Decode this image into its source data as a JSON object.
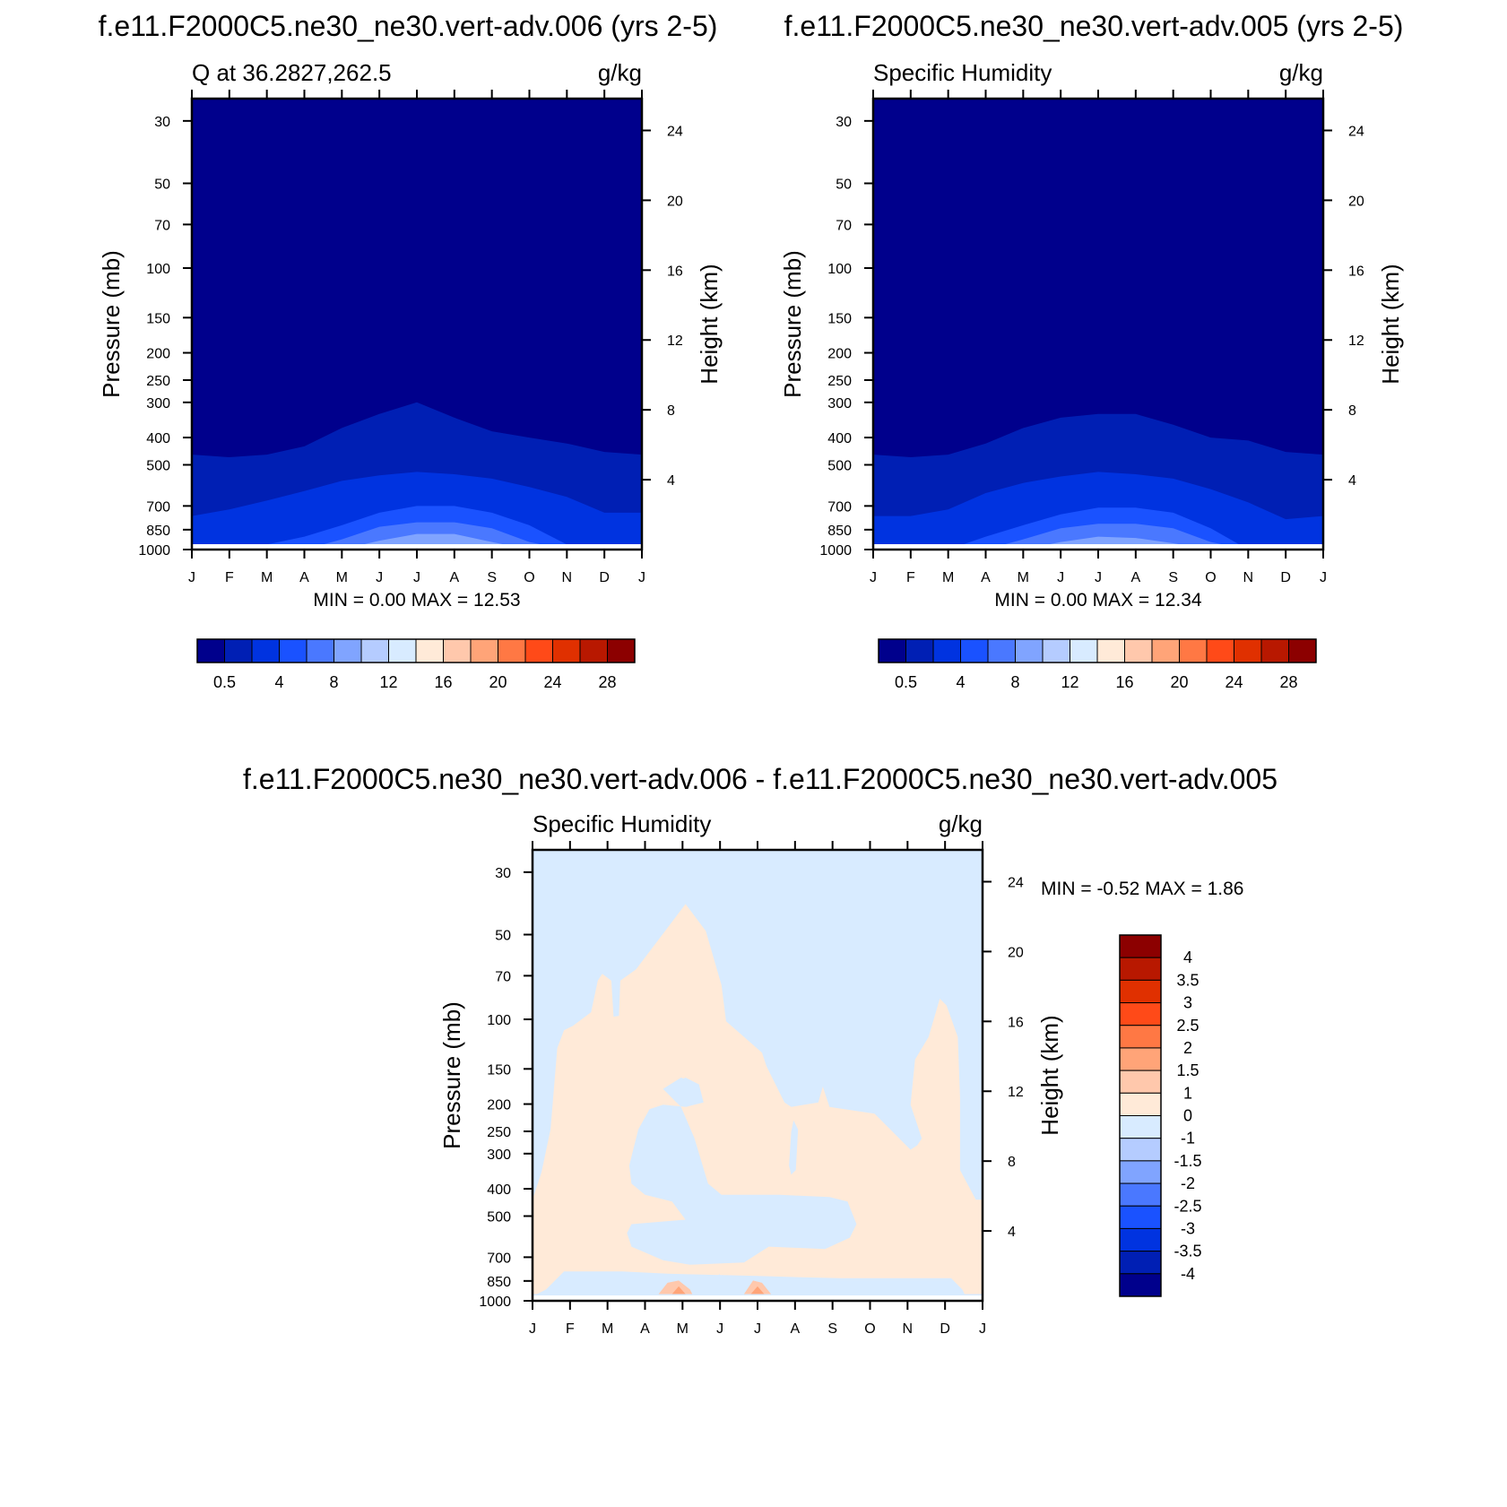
{
  "figure": {
    "left_panel_title": "f.e11.F2000C5.ne30_ne30.vert-adv.006 (yrs 2-5)",
    "right_panel_title": "f.e11.F2000C5.ne30_ne30.vert-adv.005 (yrs 2-5)",
    "diff_title": "f.e11.F2000C5.ne30_ne30.vert-adv.006 - f.e11.F2000C5.ne30_ne30.vert-adv.005"
  },
  "chart_data": [
    {
      "type": "heatmap",
      "id": "left",
      "subtitle_left": "Q at 36.2827,262.5",
      "subtitle_right": "g/kg",
      "ylabel": "Pressure (mb)",
      "ylabel_right": "Height (km)",
      "months": [
        "J",
        "F",
        "M",
        "A",
        "M",
        "J",
        "J",
        "A",
        "S",
        "O",
        "N",
        "D",
        "J"
      ],
      "pressure_ticks": [
        30,
        50,
        70,
        100,
        150,
        200,
        250,
        300,
        400,
        500,
        700,
        850,
        1000
      ],
      "height_ticks": [
        4,
        8,
        12,
        16,
        20,
        24
      ],
      "ylim": [
        1000,
        25
      ],
      "min_label": "MIN =",
      "min_value": "0.00",
      "max_label": "MAX =",
      "max_value": "12.53",
      "contour_top_pressure": {
        "level_0_5": [
          460,
          470,
          460,
          430,
          370,
          330,
          300,
          340,
          380,
          400,
          420,
          450,
          460
        ],
        "level_2": [
          760,
          720,
          670,
          620,
          570,
          545,
          530,
          540,
          560,
          600,
          650,
          740,
          740
        ],
        "level_4": [
          1000,
          1000,
          960,
          900,
          820,
          740,
          700,
          700,
          740,
          820,
          960,
          1000,
          1000
        ],
        "level_6": [
          1000,
          1000,
          1000,
          1000,
          920,
          830,
          800,
          800,
          840,
          940,
          1000,
          1000,
          1000
        ],
        "level_8": [
          1000,
          1000,
          1000,
          1000,
          1000,
          930,
          880,
          880,
          940,
          1000,
          1000,
          1000,
          1000
        ],
        "level_10": [
          1000,
          1000,
          1000,
          1000,
          1000,
          990,
          960,
          975,
          1000,
          1000,
          1000,
          1000,
          1000
        ]
      },
      "colorbar": {
        "labels": [
          "0.5",
          "4",
          "8",
          "12",
          "16",
          "20",
          "24",
          "28"
        ],
        "colors": [
          "#00008c",
          "#001fb4",
          "#0033e0",
          "#1a52ff",
          "#4a78ff",
          "#80a4ff",
          "#b5ccff",
          "#d8ebff",
          "#ffead8",
          "#ffc8ac",
          "#ffa478",
          "#ff7844",
          "#ff4a18",
          "#e03000",
          "#b81800",
          "#8c0000"
        ]
      }
    },
    {
      "type": "heatmap",
      "id": "right",
      "subtitle_left": "Specific Humidity",
      "subtitle_right": "g/kg",
      "ylabel": "Pressure (mb)",
      "ylabel_right": "Height (km)",
      "months": [
        "J",
        "F",
        "M",
        "A",
        "M",
        "J",
        "J",
        "A",
        "S",
        "O",
        "N",
        "D",
        "J"
      ],
      "pressure_ticks": [
        30,
        50,
        70,
        100,
        150,
        200,
        250,
        300,
        400,
        500,
        700,
        850,
        1000
      ],
      "height_ticks": [
        4,
        8,
        12,
        16,
        20,
        24
      ],
      "ylim": [
        1000,
        25
      ],
      "min_label": "MIN =",
      "min_value": "0.00",
      "max_label": "MAX =",
      "max_value": "12.34",
      "contour_top_pressure": {
        "level_0_5": [
          460,
          470,
          460,
          420,
          370,
          340,
          330,
          330,
          360,
          400,
          410,
          450,
          460
        ],
        "level_2": [
          760,
          760,
          720,
          630,
          580,
          550,
          530,
          540,
          560,
          610,
          680,
          780,
          760
        ],
        "level_4": [
          1000,
          1000,
          1000,
          900,
          820,
          750,
          710,
          710,
          740,
          840,
          1000,
          1000,
          1000
        ],
        "level_6": [
          1000,
          1000,
          1000,
          1000,
          920,
          840,
          810,
          810,
          840,
          940,
          1000,
          1000,
          1000
        ],
        "level_8": [
          1000,
          1000,
          1000,
          1000,
          1000,
          940,
          900,
          910,
          950,
          1000,
          1000,
          1000,
          1000
        ],
        "level_10": [
          1000,
          1000,
          1000,
          1000,
          1000,
          1000,
          975,
          990,
          1000,
          1000,
          1000,
          1000,
          1000
        ]
      },
      "colorbar": {
        "labels": [
          "0.5",
          "4",
          "8",
          "12",
          "16",
          "20",
          "24",
          "28"
        ],
        "colors": [
          "#00008c",
          "#001fb4",
          "#0033e0",
          "#1a52ff",
          "#4a78ff",
          "#80a4ff",
          "#b5ccff",
          "#d8ebff",
          "#ffead8",
          "#ffc8ac",
          "#ffa478",
          "#ff7844",
          "#ff4a18",
          "#e03000",
          "#b81800",
          "#8c0000"
        ]
      }
    },
    {
      "type": "heatmap",
      "id": "diff",
      "subtitle_left": "Specific Humidity",
      "subtitle_right": "g/kg",
      "ylabel": "Pressure (mb)",
      "ylabel_right": "Height (km)",
      "months": [
        "J",
        "F",
        "M",
        "A",
        "M",
        "J",
        "J",
        "A",
        "S",
        "O",
        "N",
        "D",
        "J"
      ],
      "pressure_ticks": [
        30,
        50,
        70,
        100,
        150,
        200,
        250,
        300,
        400,
        500,
        700,
        850,
        1000
      ],
      "height_ticks": [
        4,
        8,
        12,
        16,
        20,
        24
      ],
      "ylim": [
        1000,
        25
      ],
      "min_label": "MIN =",
      "min_value": "-0.52",
      "max_label": "MAX =",
      "max_value": "1.86",
      "background_range": "0 to -1",
      "positive_region_range": "0 to 1",
      "colorbar": {
        "labels": [
          "4",
          "3.5",
          "3",
          "2.5",
          "2",
          "1.5",
          "1",
          "0",
          "-1",
          "-1.5",
          "-2",
          "-2.5",
          "-3",
          "-3.5",
          "-4"
        ],
        "colors": [
          "#8c0000",
          "#b81800",
          "#e03000",
          "#ff4a18",
          "#ff7844",
          "#ffa478",
          "#ffc8ac",
          "#ffead8",
          "#d8ebff",
          "#b5ccff",
          "#80a4ff",
          "#4a78ff",
          "#1a52ff",
          "#0033e0",
          "#001fb4",
          "#00008c"
        ]
      }
    }
  ]
}
